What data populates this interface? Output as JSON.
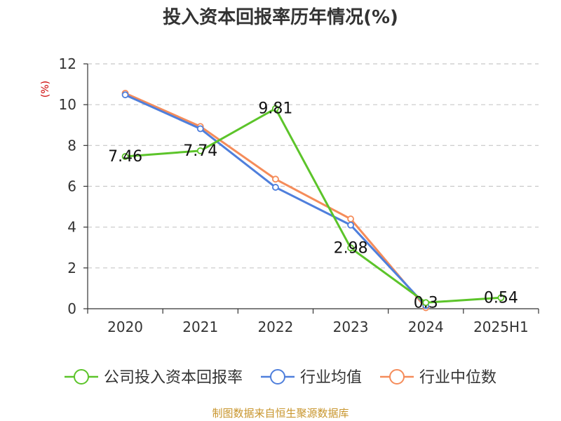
{
  "chart_data": {
    "type": "line",
    "title": "投入资本回报率历年情况(%)",
    "ylabel": "(%)",
    "xlabel": "",
    "categories": [
      "2020",
      "2021",
      "2022",
      "2023",
      "2024",
      "2025H1"
    ],
    "ylim": [
      0,
      12
    ],
    "yticks": [
      0,
      2,
      4,
      6,
      8,
      10,
      12
    ],
    "grid": true,
    "legend_position": "bottom",
    "series": [
      {
        "name": "公司投入资本回报率",
        "color": "#5cc42a",
        "values": [
          7.46,
          7.74,
          9.81,
          2.98,
          0.3,
          0.54
        ],
        "labels": [
          "7.46",
          "7.74",
          "9.81",
          "2.98",
          "0.3",
          "0.54"
        ]
      },
      {
        "name": "行业均值",
        "color": "#4f7fdc",
        "values": [
          10.48,
          8.82,
          5.95,
          4.1,
          0.15,
          null
        ]
      },
      {
        "name": "行业中位数",
        "color": "#f58c5a",
        "values": [
          10.56,
          8.93,
          6.35,
          4.4,
          0.05,
          null
        ]
      }
    ]
  },
  "source": "制图数据来自恒生聚源数据库",
  "colors": {
    "axis": "#333333",
    "grid": "#c8c8c8",
    "ylabel": "#cc0000",
    "source": "#c8952c"
  }
}
